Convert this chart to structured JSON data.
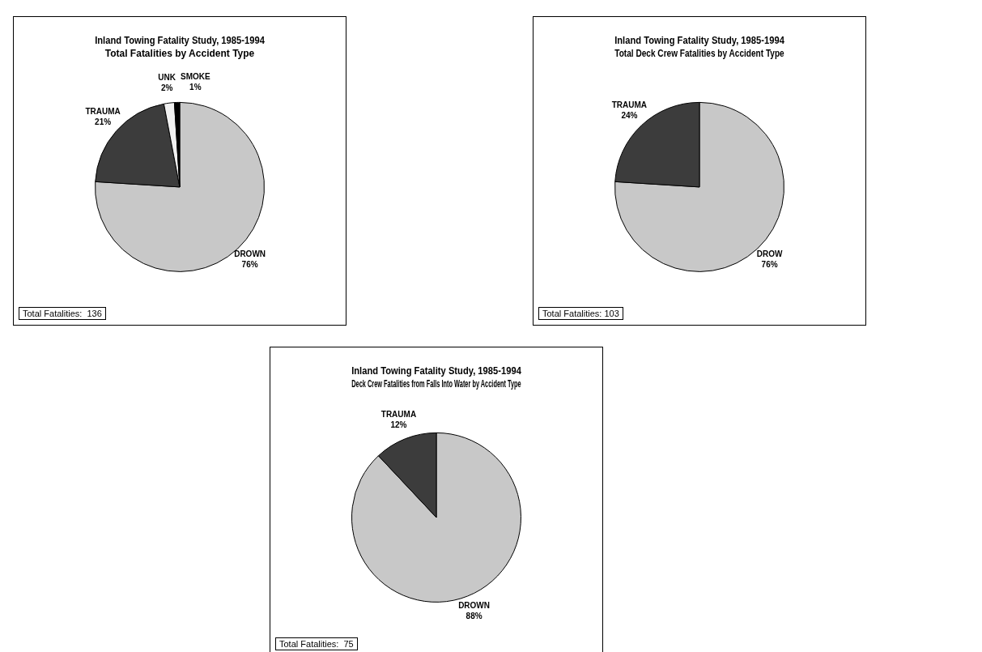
{
  "chart_data": [
    {
      "type": "pie",
      "title": "Inland Towing Fatality Study, 1985-1994",
      "subtitle": "Total Fatalities by Accident Type",
      "categories": [
        "DROWN",
        "TRAUMA",
        "UNK",
        "SMOKE"
      ],
      "values": [
        76,
        21,
        2,
        1
      ],
      "value_labels": [
        "76%",
        "21%",
        "2%",
        "1%"
      ],
      "colors": [
        "#c8c8c8",
        "#3c3c3c",
        "#f0f0f0",
        "#000000"
      ],
      "annotations": [
        "Total Fatalities:  136"
      ]
    },
    {
      "type": "pie",
      "title": "Inland Towing Fatality Study, 1985-1994",
      "subtitle": "Total Deck Crew Fatalities by Accident Type",
      "categories": [
        "DROW",
        "TRAUMA"
      ],
      "values": [
        76,
        24
      ],
      "value_labels": [
        "76%",
        "24%"
      ],
      "colors": [
        "#c8c8c8",
        "#3c3c3c"
      ],
      "annotations": [
        "Total Fatalities: 103"
      ]
    },
    {
      "type": "pie",
      "title": "Inland Towing Fatality Study, 1985-1994",
      "subtitle": "Deck Crew Fatalities from Falls Into Water by Accident Type",
      "categories": [
        "DROWN",
        "TRAUMA"
      ],
      "values": [
        88,
        12
      ],
      "value_labels": [
        "88%",
        "12%"
      ],
      "colors": [
        "#c8c8c8",
        "#3c3c3c"
      ],
      "annotations": [
        "Total Fatalities:  75"
      ]
    }
  ]
}
